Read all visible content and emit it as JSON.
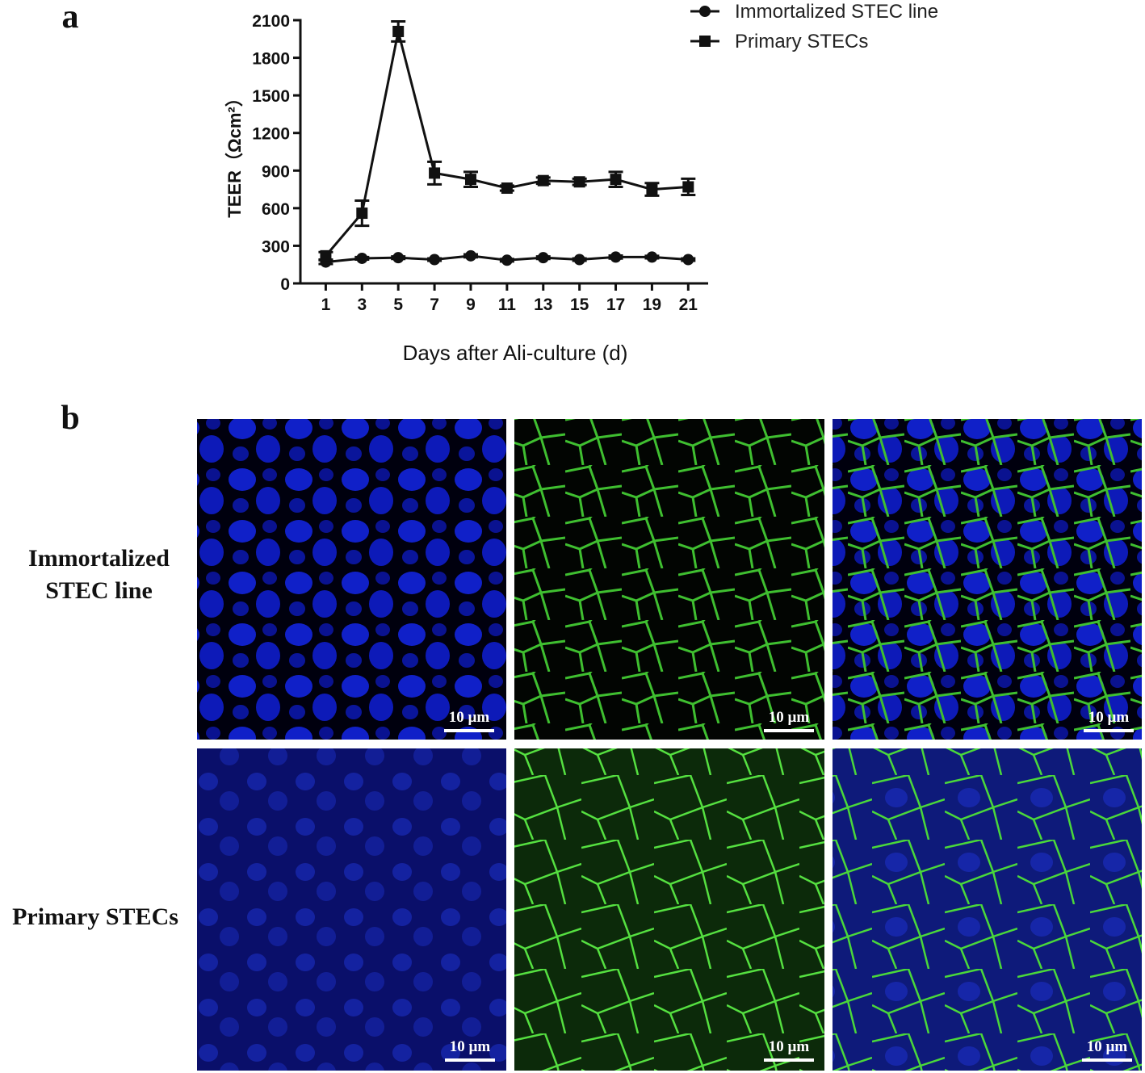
{
  "panel_labels": [
    "a",
    "b"
  ],
  "chart_data": {
    "type": "line",
    "ylabel": "TEER（Ωcm²）",
    "xlabel": "Days after Ali-culture (d)",
    "x": [
      1,
      3,
      5,
      7,
      9,
      11,
      13,
      15,
      17,
      19,
      21
    ],
    "xlim": [
      -0.4,
      22.1
    ],
    "xticks": [
      1,
      3,
      5,
      7,
      9,
      11,
      13,
      15,
      17,
      19,
      21
    ],
    "ylim": [
      0,
      2100
    ],
    "yticks": [
      0,
      300,
      600,
      900,
      1200,
      1500,
      1800,
      2100
    ],
    "legend": "top-right",
    "series": [
      {
        "name": "Immortalized STEC line",
        "color": "#111111",
        "marker": "circle",
        "values": [
          170,
          200,
          205,
          190,
          220,
          185,
          205,
          190,
          210,
          210,
          190
        ],
        "errors": [
          15,
          10,
          10,
          10,
          12,
          10,
          10,
          10,
          12,
          10,
          10
        ]
      },
      {
        "name": "Primary STECs",
        "color": "#111111",
        "marker": "square",
        "values": [
          220,
          560,
          2010,
          880,
          830,
          760,
          820,
          810,
          830,
          750,
          770
        ],
        "errors": [
          30,
          100,
          80,
          90,
          60,
          20,
          25,
          25,
          60,
          50,
          65
        ]
      }
    ]
  },
  "row_labels": [
    "Immortalized STEC line",
    "Primary STECs"
  ],
  "scale_labels": [
    "10 µm",
    "10 µm",
    "10 µm",
    "10 µm",
    "10 µm",
    "10 µm"
  ]
}
